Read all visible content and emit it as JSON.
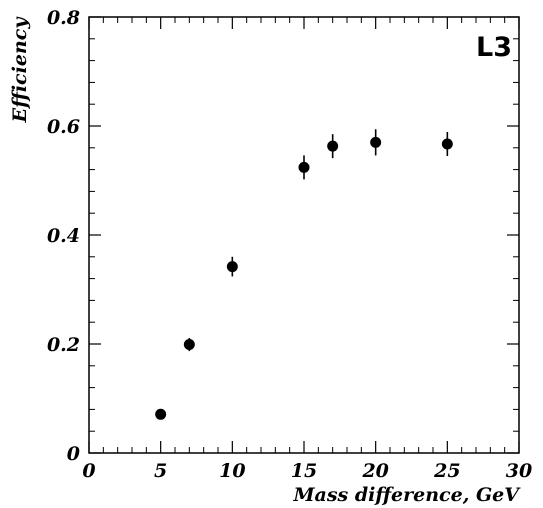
{
  "chart_data": {
    "type": "scatter",
    "title": "",
    "xlabel": "Mass difference, GeV",
    "ylabel": "Efficiency",
    "badge": "L3",
    "xlim": [
      0,
      30
    ],
    "ylim": [
      0,
      0.8
    ],
    "xticks": [
      "0",
      "5",
      "10",
      "15",
      "20",
      "25",
      "30"
    ],
    "yticks": [
      "0",
      "0.2",
      "0.4",
      "0.6",
      "0.8"
    ],
    "grid": false,
    "legend": "none",
    "marker_color": "#000000",
    "points": [
      {
        "x": 5,
        "y": 0.071,
        "err": 0.006
      },
      {
        "x": 7,
        "y": 0.199,
        "err": 0.012
      },
      {
        "x": 10,
        "y": 0.342,
        "err": 0.018
      },
      {
        "x": 15,
        "y": 0.524,
        "err": 0.022
      },
      {
        "x": 17,
        "y": 0.563,
        "err": 0.022
      },
      {
        "x": 20,
        "y": 0.57,
        "err": 0.024
      },
      {
        "x": 25,
        "y": 0.567,
        "err": 0.022
      }
    ]
  }
}
